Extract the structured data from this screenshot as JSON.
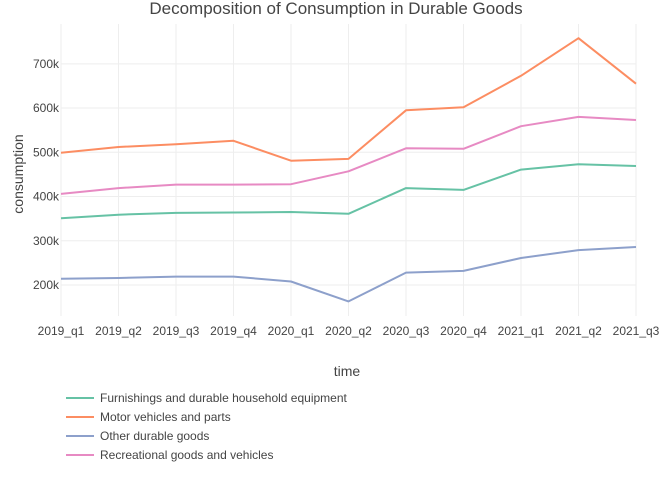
{
  "chart_data": {
    "type": "line",
    "title": "Decomposition of Consumption in Durable Goods",
    "xlabel": "time",
    "ylabel": "consumption",
    "categories": [
      "2019_q1",
      "2019_q2",
      "2019_q3",
      "2019_q4",
      "2020_q1",
      "2020_q2",
      "2020_q3",
      "2020_q4",
      "2021_q1",
      "2021_q2",
      "2021_q3"
    ],
    "y_ticks": [
      200000,
      300000,
      400000,
      500000,
      600000,
      700000
    ],
    "y_tick_labels": [
      "200k",
      "300k",
      "400k",
      "500k",
      "600k",
      "700k"
    ],
    "ylim": [
      130000,
      790000
    ],
    "grid": true,
    "legend_position": "bottom",
    "series": [
      {
        "name": "Furnishings and durable household equipment",
        "color": "#66c2a5",
        "values": [
          351000,
          359000,
          363000,
          364000,
          365000,
          361000,
          419000,
          415000,
          461000,
          473000,
          469000
        ]
      },
      {
        "name": "Motor vehicles and parts",
        "color": "#fc8d62",
        "values": [
          499000,
          512000,
          518000,
          526000,
          481000,
          485000,
          595000,
          602000,
          673000,
          758000,
          655000
        ]
      },
      {
        "name": "Other durable goods",
        "color": "#8da0cb",
        "values": [
          214000,
          216000,
          219000,
          219000,
          208000,
          163000,
          228000,
          232000,
          261000,
          279000,
          286000
        ]
      },
      {
        "name": "Recreational goods and vehicles",
        "color": "#e78ac3",
        "values": [
          406000,
          419000,
          427000,
          427000,
          428000,
          457000,
          509000,
          508000,
          559000,
          580000,
          573000
        ]
      }
    ]
  }
}
